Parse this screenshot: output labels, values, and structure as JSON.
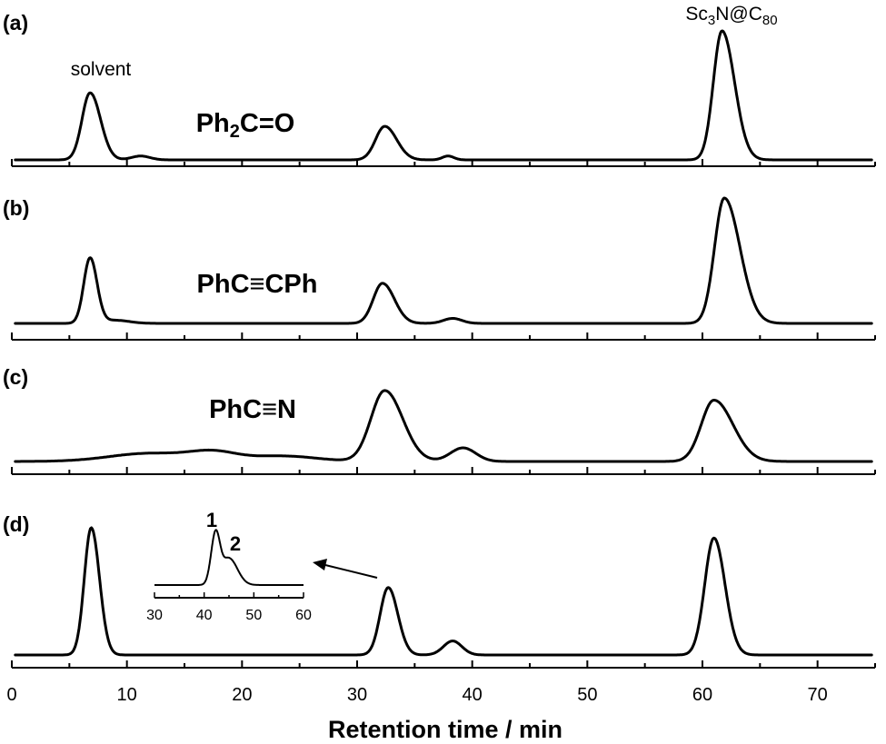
{
  "chart_data": {
    "type": "line",
    "xlabel": "Retention time / min",
    "xlim": [
      0,
      75
    ],
    "xticks": [
      0,
      10,
      20,
      30,
      40,
      50,
      60,
      70
    ],
    "yaxis_visible": false,
    "annotations": {
      "solvent_label": "solvent",
      "product_label_parts": [
        "Sc",
        "3",
        "N@C",
        "80"
      ]
    },
    "panels": [
      {
        "label": "(a)",
        "compound_parts": [
          {
            "t": "Ph"
          },
          {
            "t": "2",
            "sub": true
          },
          {
            "t": "C=O"
          }
        ],
        "baseline": 0.02,
        "peaks": [
          {
            "center": 6.8,
            "height": 0.52,
            "width": 0.7,
            "tail": 1.3
          },
          {
            "center": 11.2,
            "height": 0.03,
            "width": 0.8,
            "tail": 1.0
          },
          {
            "center": 32.4,
            "height": 0.26,
            "width": 0.8,
            "tail": 1.3
          },
          {
            "center": 37.9,
            "height": 0.03,
            "width": 0.5,
            "tail": 1.0
          },
          {
            "center": 61.7,
            "height": 1.0,
            "width": 0.75,
            "tail": 1.45
          }
        ]
      },
      {
        "label": "(b)",
        "compound_parts": [
          {
            "t": "PhC≡CPh"
          }
        ],
        "baseline": 0.02,
        "peaks": [
          {
            "center": 6.8,
            "height": 0.52,
            "width": 0.55,
            "tail": 1.1
          },
          {
            "center": 9.0,
            "height": 0.025,
            "width": 1.2,
            "tail": 1.0
          },
          {
            "center": 32.2,
            "height": 0.32,
            "width": 0.8,
            "tail": 1.3
          },
          {
            "center": 38.3,
            "height": 0.04,
            "width": 0.8,
            "tail": 1.0
          },
          {
            "center": 61.9,
            "height": 1.0,
            "width": 0.85,
            "tail": 1.6
          }
        ]
      },
      {
        "label": "(c)",
        "compound_parts": [
          {
            "t": "PhC≡N"
          }
        ],
        "baseline": 0.02,
        "peaks": [
          {
            "center": 12.0,
            "height": 0.06,
            "width": 3.5,
            "tail": 1.0
          },
          {
            "center": 17.5,
            "height": 0.06,
            "width": 2.0,
            "tail": 1.0
          },
          {
            "center": 23.5,
            "height": 0.04,
            "width": 3.0,
            "tail": 1.0
          },
          {
            "center": 32.4,
            "height": 0.52,
            "width": 1.2,
            "tail": 1.3
          },
          {
            "center": 39.2,
            "height": 0.1,
            "width": 1.1,
            "tail": 1.0
          },
          {
            "center": 61.0,
            "height": 0.45,
            "width": 1.1,
            "tail": 1.5
          }
        ]
      },
      {
        "label": "(d)",
        "compound_parts": [],
        "baseline": 0.02,
        "peaks": [
          {
            "center": 6.9,
            "height": 1.0,
            "width": 0.6,
            "tail": 1.2
          },
          {
            "center": 32.7,
            "height": 0.53,
            "width": 0.7,
            "tail": 1.2
          },
          {
            "center": 38.3,
            "height": 0.11,
            "width": 0.8,
            "tail": 1.0
          },
          {
            "center": 61.0,
            "height": 0.92,
            "width": 0.8,
            "tail": 1.2
          }
        ],
        "inset": {
          "xlim": [
            30,
            60
          ],
          "xticks": [
            30,
            40,
            50,
            60
          ],
          "peak_labels": [
            "1",
            "2"
          ],
          "peaks": [
            {
              "center": 42.3,
              "height": 0.62,
              "width": 0.9,
              "tail": 1.0
            },
            {
              "center": 45.0,
              "height": 0.32,
              "width": 1.3,
              "tail": 1.3
            }
          ]
        }
      }
    ]
  }
}
